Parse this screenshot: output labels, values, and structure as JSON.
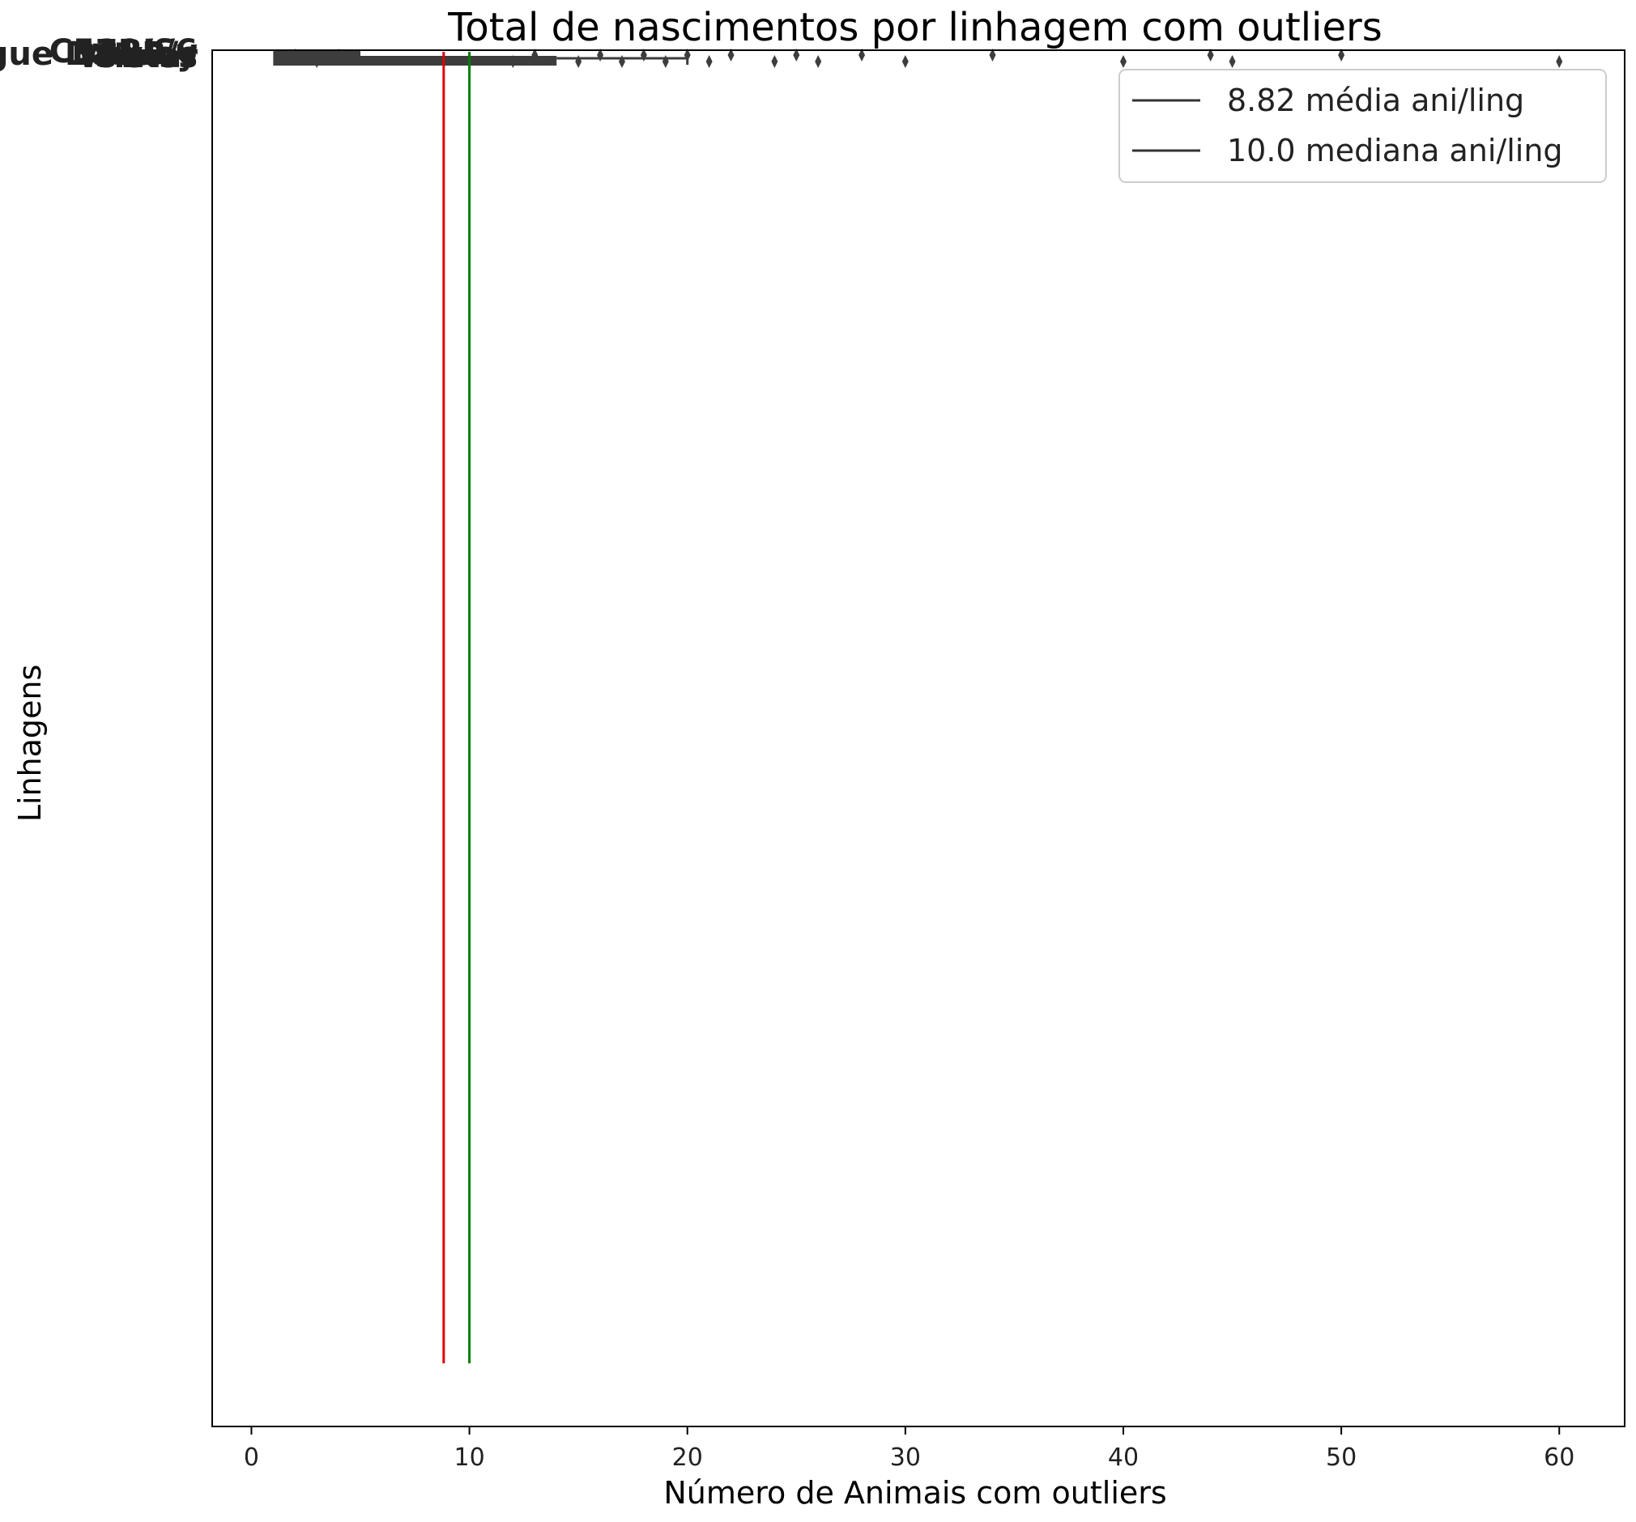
{
  "chart_data": {
    "type": "boxplot",
    "title": "Total de nascimentos por linhagem com outliers",
    "xlabel": "Número de Animais com outliers",
    "ylabel": "Linhagens",
    "xlim": [
      -1.8,
      63
    ],
    "xticks": [
      0,
      10,
      20,
      30,
      40,
      50,
      60
    ],
    "ytick_labels": [
      "Swiss",
      "BALB/c",
      "C57BL/6",
      "Wistar",
      "Sprague Dawley",
      "129/Sv"
    ],
    "summary": {
      "min": 1,
      "q1": 1,
      "median": 10,
      "q3": 14,
      "max": 20
    },
    "outliers": [
      2,
      3,
      4,
      12,
      13,
      15,
      16,
      17,
      18,
      19,
      20,
      21,
      22,
      24,
      25,
      26,
      28,
      30,
      34,
      40,
      44,
      45,
      50,
      60
    ],
    "reference_lines": [
      {
        "label": "8.82 média ani/ling",
        "value": 8.82,
        "color": "#dd0000"
      },
      {
        "label": "10.0 mediana ani/ling",
        "value": 10.0,
        "color": "#008000"
      }
    ],
    "legend": {
      "position": "top-right",
      "entries": [
        "8.82 média ani/ling",
        "10.0 mediana ani/ling"
      ]
    },
    "grid": false
  }
}
